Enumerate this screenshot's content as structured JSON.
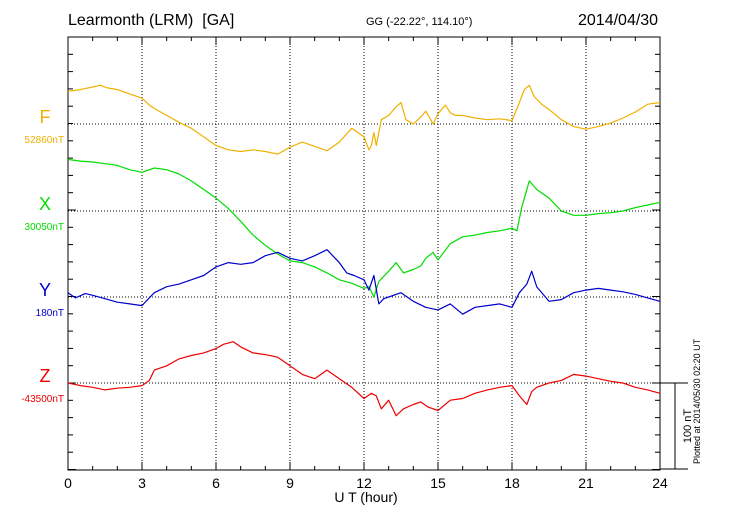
{
  "header": {
    "station": "Learmonth (LRM)  [GA]",
    "coords": "GG (-22.22°, 114.10°)",
    "date": "2014/04/30"
  },
  "footer": {
    "plotted": "Plotted at 2014/05/30 02:20 UT"
  },
  "colors": {
    "F": "#f0b000",
    "X": "#00dd00",
    "Y": "#0000cc",
    "Z": "#ee0000"
  },
  "chart_data": {
    "type": "line",
    "title": "Learmonth (LRM) [GA] 2014/04/30",
    "xlabel": "U T (hour)",
    "xlim": [
      0,
      24
    ],
    "xticks": [
      0,
      3,
      6,
      9,
      12,
      15,
      18,
      21,
      24
    ],
    "scale_label": "100 nT",
    "scale_nT": 100,
    "grid": true,
    "series": [
      {
        "name": "F",
        "baseline": "52860nT",
        "center_nT": 0,
        "x": [
          0,
          0.5,
          1,
          1.3,
          1.6,
          2,
          2.5,
          3,
          3.3,
          3.5,
          4,
          4.5,
          5,
          5.5,
          6,
          6.5,
          7,
          7.5,
          8,
          8.5,
          9,
          9.5,
          10,
          10.5,
          11,
          11.5,
          12,
          12.2,
          12.3,
          12.4,
          12.5,
          12.7,
          13,
          13.3,
          13.5,
          13.7,
          14,
          14.3,
          14.5,
          14.8,
          15,
          15.3,
          15.5,
          15.7,
          16,
          16.5,
          17,
          17.5,
          18,
          18.3,
          18.5,
          18.7,
          18.9,
          19.2,
          19.5,
          20,
          20.5,
          21,
          21.5,
          22,
          22.5,
          23,
          23.5,
          24
        ],
        "y": [
          38,
          40,
          43,
          45,
          42,
          40,
          35,
          30,
          22,
          18,
          10,
          2,
          -5,
          -15,
          -25,
          -30,
          -32,
          -30,
          -32,
          -35,
          -27,
          -21,
          -26,
          -31,
          -21,
          -5,
          -15,
          -30,
          -25,
          -10,
          -25,
          5,
          10,
          20,
          25,
          5,
          0,
          8,
          15,
          0,
          12,
          22,
          13,
          10,
          10,
          7,
          5,
          6,
          4,
          25,
          40,
          45,
          32,
          23,
          17,
          5,
          -3,
          -6,
          -3,
          1,
          7,
          14,
          23,
          25
        ]
      },
      {
        "name": "X",
        "baseline": "30050nT",
        "center_nT": 0,
        "x": [
          0,
          0.5,
          1,
          1.5,
          2,
          2.5,
          3,
          3.5,
          4,
          4.5,
          5,
          5.5,
          6,
          6.5,
          7,
          7.5,
          8,
          8.5,
          9,
          9.5,
          10,
          10.5,
          11,
          11.5,
          12,
          12.2,
          12.4,
          12.6,
          13,
          13.3,
          13.6,
          14,
          14.3,
          14.5,
          14.8,
          15,
          15.5,
          16,
          16.5,
          17,
          17.5,
          18,
          18.2,
          18.4,
          18.7,
          19,
          19.5,
          20,
          20.5,
          21,
          21.5,
          22,
          22.5,
          23,
          23.5,
          24
        ],
        "y": [
          60,
          58,
          57,
          55,
          53,
          48,
          45,
          50,
          48,
          43,
          35,
          25,
          15,
          3,
          -12,
          -28,
          -40,
          -50,
          -58,
          -60,
          -65,
          -72,
          -80,
          -84,
          -90,
          -88,
          -100,
          -82,
          -70,
          -60,
          -72,
          -68,
          -64,
          -55,
          -48,
          -57,
          -38,
          -30,
          -28,
          -25,
          -23,
          -20,
          -23,
          5,
          35,
          25,
          15,
          0,
          -5,
          -5,
          -3,
          -2,
          0,
          4,
          7,
          10
        ]
      },
      {
        "name": "Y",
        "baseline": "180nT",
        "center_nT": 0,
        "x": [
          0,
          0.3,
          0.7,
          1,
          1.5,
          2,
          2.5,
          3,
          3.2,
          3.5,
          4,
          4.5,
          5,
          5.5,
          6,
          6.5,
          7,
          7.5,
          8,
          8.5,
          9,
          9.5,
          10,
          10.5,
          11,
          11.3,
          11.6,
          12,
          12.2,
          12.4,
          12.6,
          12.8,
          13,
          13.5,
          14,
          14.5,
          15,
          15.5,
          16,
          16.5,
          17,
          17.5,
          18,
          18.3,
          18.6,
          18.8,
          19,
          19.5,
          20,
          20.5,
          21,
          21.5,
          22,
          22.5,
          23,
          23.5,
          24
        ],
        "y": [
          5,
          -1,
          4,
          2,
          -2,
          -6,
          -8,
          -10,
          -4,
          5,
          12,
          15,
          20,
          25,
          35,
          40,
          38,
          40,
          48,
          52,
          45,
          42,
          48,
          55,
          40,
          28,
          25,
          20,
          8,
          25,
          -8,
          -2,
          0,
          5,
          -5,
          -12,
          -15,
          -8,
          -20,
          -12,
          -10,
          -8,
          -12,
          5,
          15,
          30,
          12,
          -5,
          -3,
          5,
          8,
          10,
          8,
          6,
          3,
          -1,
          -5
        ]
      },
      {
        "name": "Z",
        "baseline": "-43500nT",
        "center_nT": 0,
        "x": [
          0,
          0.5,
          1,
          1.5,
          2,
          2.5,
          3,
          3.3,
          3.5,
          4,
          4.5,
          5,
          5.5,
          6,
          6.3,
          6.7,
          7,
          7.5,
          8,
          8.5,
          9,
          9.5,
          10,
          10.5,
          11,
          11.5,
          12,
          12.3,
          12.5,
          12.7,
          13,
          13.3,
          13.6,
          14,
          14.3,
          14.6,
          15,
          15.5,
          16,
          16.5,
          17,
          17.5,
          18,
          18.3,
          18.6,
          18.8,
          19,
          19.5,
          20,
          20.5,
          21,
          21.5,
          22,
          22.5,
          23,
          23.5,
          24
        ],
        "y": [
          0,
          -3,
          -5,
          -8,
          -6,
          -5,
          -3,
          3,
          15,
          20,
          28,
          32,
          35,
          40,
          45,
          48,
          42,
          35,
          33,
          30,
          20,
          10,
          5,
          15,
          5,
          -5,
          -18,
          -12,
          -15,
          -30,
          -20,
          -38,
          -30,
          -25,
          -22,
          -28,
          -32,
          -20,
          -18,
          -12,
          -8,
          -5,
          -3,
          -15,
          -25,
          -10,
          -5,
          0,
          3,
          10,
          8,
          5,
          2,
          0,
          -5,
          -8,
          -12
        ]
      }
    ]
  }
}
